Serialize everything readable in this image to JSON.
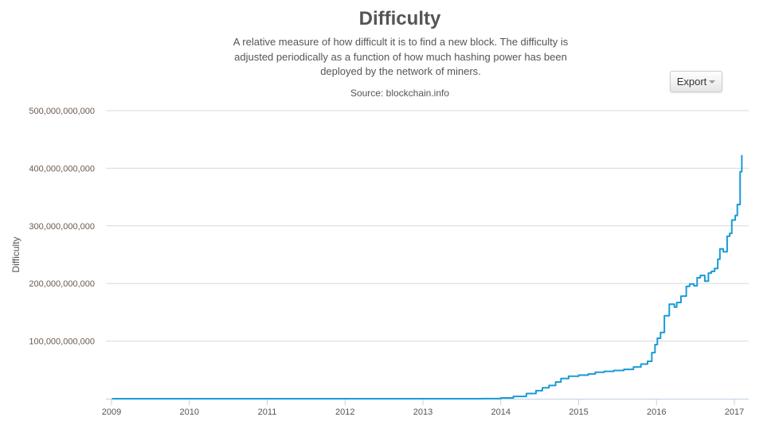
{
  "header": {
    "title": "Difficulty",
    "subtitle": "A relative measure of how difficult it is to find a new block. The difficulty is adjusted periodically as a function of how much hashing power has been deployed by the network of miners.",
    "source": "Source: blockchain.info",
    "export_label": "Export"
  },
  "chart_data": {
    "type": "line",
    "step": true,
    "title": "Difficulty",
    "ylabel": "Difficulty",
    "xlabel": "",
    "ylim": [
      0,
      500000000000
    ],
    "yticks": [
      100000000000,
      200000000000,
      300000000000,
      400000000000,
      500000000000
    ],
    "ytick_labels": [
      "100,000,000,000",
      "200,000,000,000",
      "300,000,000,000",
      "400,000,000,000",
      "500,000,000,000"
    ],
    "xticks": [
      "2009",
      "2010",
      "2011",
      "2012",
      "2013",
      "2014",
      "2015",
      "2016",
      "2017"
    ],
    "grid": true,
    "line_color": "#1a9bd7",
    "series": [
      {
        "points": [
          [
            "2009-01-03",
            1
          ],
          [
            "2010-06-01",
            20000
          ],
          [
            "2011-06-01",
            1500000
          ],
          [
            "2012-06-01",
            1600000
          ],
          [
            "2013-01-01",
            3400000
          ],
          [
            "2013-06-01",
            15000000
          ],
          [
            "2013-10-01",
            190000000
          ],
          [
            "2014-01-01",
            1400000000
          ],
          [
            "2014-03-01",
            4000000000
          ],
          [
            "2014-05-01",
            8900000000
          ],
          [
            "2014-06-15",
            14000000000
          ],
          [
            "2014-07-15",
            19000000000
          ],
          [
            "2014-08-15",
            23000000000
          ],
          [
            "2014-09-15",
            29000000000
          ],
          [
            "2014-10-10",
            35000000000
          ],
          [
            "2014-11-15",
            39000000000
          ],
          [
            "2015-01-01",
            41000000000
          ],
          [
            "2015-02-15",
            43000000000
          ],
          [
            "2015-03-20",
            46000000000
          ],
          [
            "2015-05-01",
            47500000000
          ],
          [
            "2015-06-15",
            49000000000
          ],
          [
            "2015-08-01",
            51000000000
          ],
          [
            "2015-09-15",
            55000000000
          ],
          [
            "2015-10-20",
            60000000000
          ],
          [
            "2015-11-20",
            65000000000
          ],
          [
            "2015-12-10",
            80000000000
          ],
          [
            "2015-12-25",
            94000000000
          ],
          [
            "2016-01-05",
            105000000000
          ],
          [
            "2016-01-20",
            115000000000
          ],
          [
            "2016-02-07",
            144000000000
          ],
          [
            "2016-03-01",
            164000000000
          ],
          [
            "2016-03-25",
            159000000000
          ],
          [
            "2016-04-05",
            167000000000
          ],
          [
            "2016-04-25",
            178000000000
          ],
          [
            "2016-05-20",
            195000000000
          ],
          [
            "2016-06-05",
            199000000000
          ],
          [
            "2016-06-25",
            196000000000
          ],
          [
            "2016-07-10",
            210000000000
          ],
          [
            "2016-07-25",
            214000000000
          ],
          [
            "2016-08-15",
            204000000000
          ],
          [
            "2016-09-01",
            218000000000
          ],
          [
            "2016-09-15",
            221000000000
          ],
          [
            "2016-09-30",
            226000000000
          ],
          [
            "2016-10-15",
            242000000000
          ],
          [
            "2016-10-25",
            260000000000
          ],
          [
            "2016-11-10",
            255000000000
          ],
          [
            "2016-11-28",
            282000000000
          ],
          [
            "2016-12-10",
            287000000000
          ],
          [
            "2016-12-20",
            310000000000
          ],
          [
            "2017-01-05",
            318000000000
          ],
          [
            "2017-01-15",
            337000000000
          ],
          [
            "2017-01-28",
            394000000000
          ],
          [
            "2017-02-05",
            423000000000
          ]
        ]
      }
    ]
  }
}
